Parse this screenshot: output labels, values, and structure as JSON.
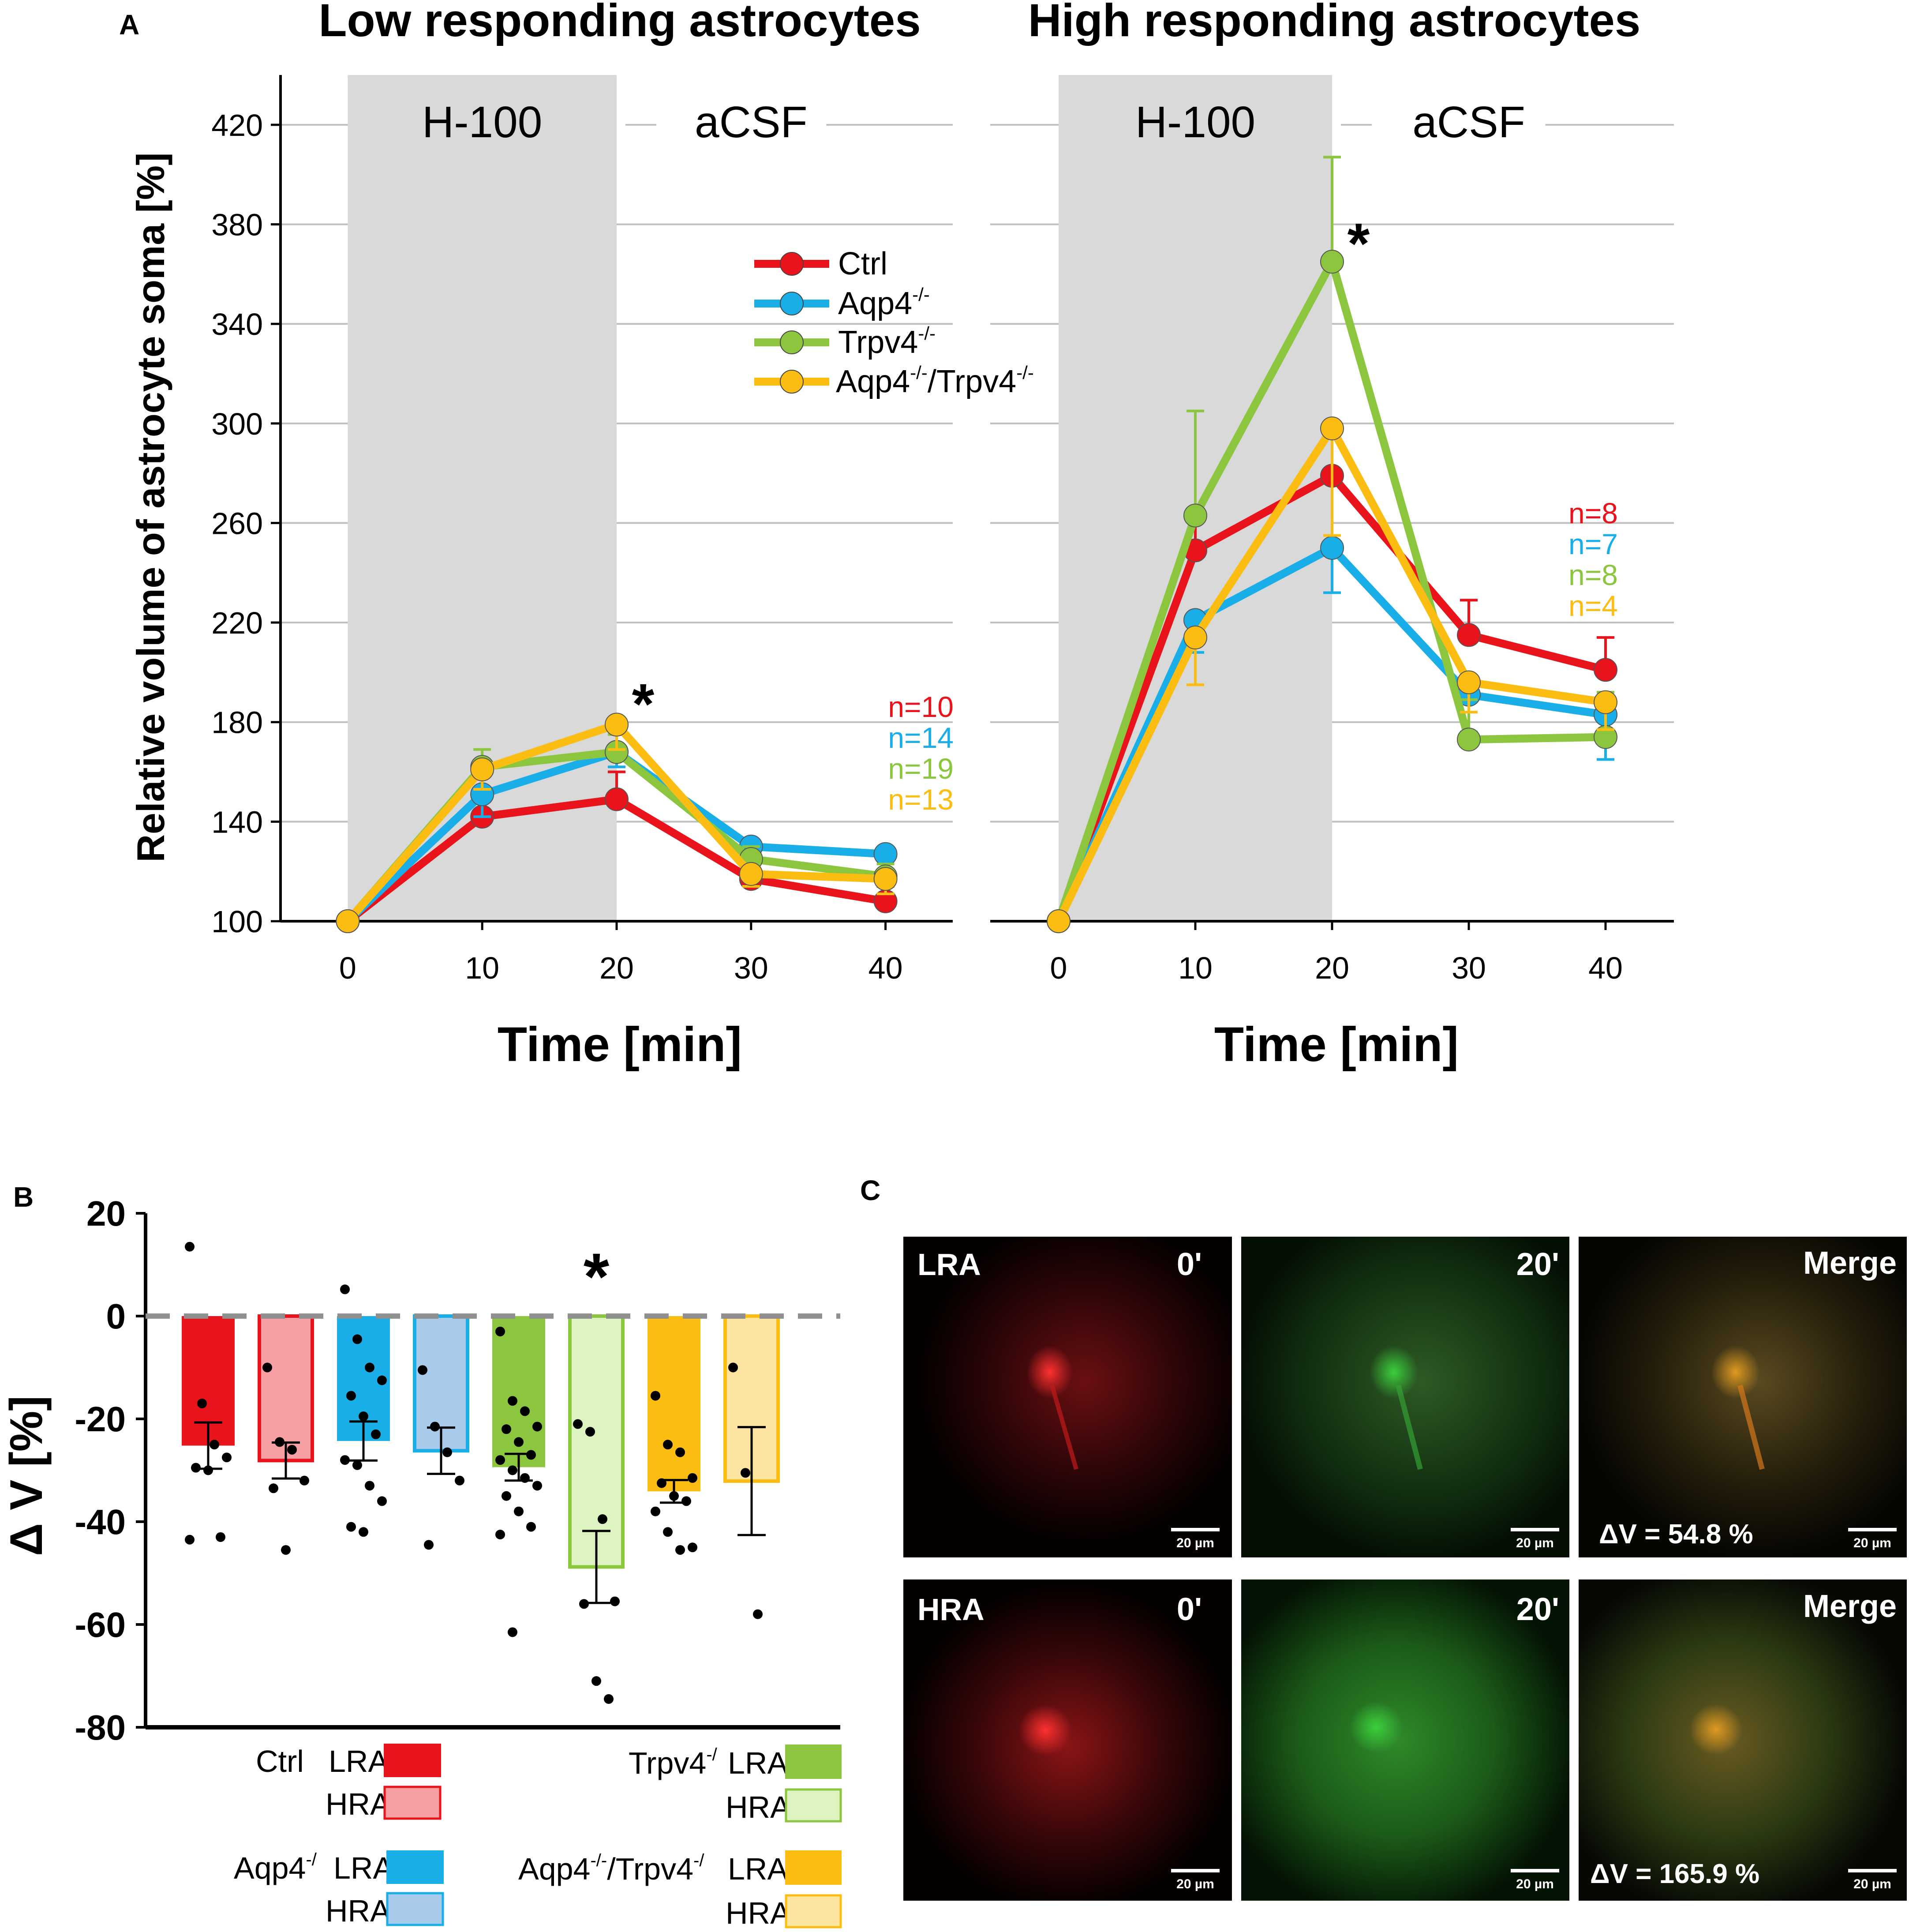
{
  "colors": {
    "ctrl": "#e8131b",
    "aqp4": "#19aee8",
    "trpv4": "#8cc63f",
    "aqp4_trpv4": "#fbbd12",
    "ctrl_hra_fill": "#f7a0a4",
    "aqp4_hra_fill": "#a8cbec",
    "trpv4_hra_fill": "#ddf4c1",
    "aqp4_trpv4_hra_fill": "#fde5a1",
    "shade": "#d9d9d9",
    "grid": "#bfbfbf",
    "zero_line": "#8f8f8f"
  },
  "panel_a": {
    "label": "A",
    "left_title": "Low responding astrocytes",
    "right_title": "High responding astrocytes",
    "shade_label": "H-100",
    "after_label": "aCSF",
    "ylabel": "Relative volume of astrocyte soma [%]",
    "xlabel": "Time [min]",
    "star": "*"
  },
  "panel_b": {
    "label": "B",
    "ylabel": "Δ V [%]",
    "star": "*",
    "legend": {
      "ctrl": "Ctrl",
      "aqp4": "Aqp4",
      "trpv4": "Trpv4",
      "aqp4_trpv4_a": "Aqp4",
      "aqp4_trpv4_b": "/Trpv4",
      "ko_sup": "-/-",
      "ko_sup_short": "-/",
      "lra": "LRA",
      "hra": "HRA"
    }
  },
  "panel_c": {
    "label": "C",
    "row_lra": "LRA",
    "row_hra": "HRA",
    "time0": "0'",
    "time20": "20'",
    "merge": "Merge",
    "scale": "20 µm",
    "dv_lra": "ΔV = 54.8 %",
    "dv_hra": "ΔV = 165.9 %"
  },
  "chart_data": [
    {
      "type": "line",
      "title": "Low responding astrocytes",
      "xlabel": "Time [min]",
      "ylabel": "Relative volume of astrocyte soma [%]",
      "x": [
        0,
        10,
        20,
        30,
        40
      ],
      "xlim": [
        -5,
        45
      ],
      "ylim": [
        100,
        440
      ],
      "yticks": [
        100,
        140,
        180,
        220,
        260,
        300,
        340,
        380,
        420
      ],
      "shaded_region": [
        0,
        20
      ],
      "legend": [
        "Ctrl",
        "Aqp4-/-",
        "Trpv4-/-",
        "Aqp4-/-/Trpv4-/-"
      ],
      "legend_position": "top-right",
      "significance": {
        "x": 20,
        "y": 190,
        "label": "*"
      },
      "series": [
        {
          "name": "Ctrl",
          "color_key": "ctrl",
          "n": "n=10",
          "values": [
            100,
            142,
            149,
            117,
            108
          ],
          "err": [
            0,
            8,
            11,
            6,
            6
          ]
        },
        {
          "name": "Aqp4-/-",
          "color_key": "aqp4",
          "n": "n=14",
          "values": [
            100,
            151,
            168,
            130,
            127
          ],
          "err": [
            0,
            9,
            6,
            9,
            9
          ]
        },
        {
          "name": "Trpv4-/-",
          "color_key": "trpv4",
          "n": "n=19",
          "values": [
            100,
            162,
            168,
            125,
            118
          ],
          "err": [
            0,
            7,
            7,
            5,
            5
          ]
        },
        {
          "name": "Aqp4-/-/Trpv4-/-",
          "color_key": "aqp4_trpv4",
          "n": "n=13",
          "values": [
            100,
            161,
            179,
            119,
            117
          ],
          "err": [
            0,
            8,
            10,
            5,
            6
          ]
        }
      ]
    },
    {
      "type": "line",
      "title": "High responding astrocytes",
      "xlabel": "Time [min]",
      "x": [
        0,
        10,
        20,
        30,
        40
      ],
      "xlim": [
        -5,
        45
      ],
      "ylim": [
        100,
        440
      ],
      "shaded_region": [
        0,
        20
      ],
      "significance": {
        "x": 20,
        "y": 375,
        "label": "*"
      },
      "series": [
        {
          "name": "Ctrl",
          "color_key": "ctrl",
          "n": "n=8",
          "values": [
            100,
            249,
            279,
            215,
            201
          ],
          "err": [
            0,
            14,
            20,
            14,
            13
          ]
        },
        {
          "name": "Aqp4-/-",
          "color_key": "aqp4",
          "n": "n=7",
          "values": [
            100,
            221,
            250,
            191,
            183
          ],
          "err": [
            0,
            13,
            18,
            15,
            18
          ]
        },
        {
          "name": "Trpv4-/-",
          "color_key": "trpv4",
          "n": "n=8",
          "values": [
            100,
            263,
            365,
            173,
            174
          ],
          "err": [
            0,
            42,
            42,
            16,
            18
          ]
        },
        {
          "name": "Aqp4-/-/Trpv4-/-",
          "color_key": "aqp4_trpv4",
          "n": "n=4",
          "values": [
            100,
            214,
            298,
            196,
            188
          ],
          "err": [
            0,
            19,
            43,
            12,
            11
          ]
        }
      ]
    },
    {
      "type": "bar",
      "ylabel": "Δ V [%]",
      "ylim": [
        -80,
        20
      ],
      "yticks": [
        20,
        0,
        -20,
        -40,
        -60,
        -80
      ],
      "categories": [
        "Ctrl LRA",
        "Ctrl HRA",
        "Aqp4-/- LRA",
        "Aqp4-/- HRA",
        "Trpv4-/- LRA",
        "Trpv4-/- HRA",
        "Aqp4-/-/Trpv4-/- LRA",
        "Aqp4-/-/Trpv4-/- HRA"
      ],
      "values": [
        -25.2,
        -28.1,
        -24.3,
        -26.2,
        -29.4,
        -48.8,
        -34.1,
        -32.1
      ],
      "sem": [
        4.5,
        3.5,
        3.8,
        4.5,
        2.6,
        7.0,
        2.2,
        10.5
      ],
      "fill_keys": [
        "ctrl",
        "ctrl_hra_fill",
        "aqp4",
        "aqp4_hra_fill",
        "trpv4",
        "trpv4_hra_fill",
        "aqp4_trpv4",
        "aqp4_trpv4_hra_fill"
      ],
      "stroke_keys": [
        "ctrl",
        "ctrl",
        "aqp4",
        "aqp4",
        "trpv4",
        "trpv4",
        "aqp4_trpv4",
        "aqp4_trpv4"
      ],
      "significance": {
        "category": 5,
        "label": "*"
      },
      "points": [
        [
          13.5,
          -17,
          -25,
          -27.5,
          -29.5,
          -30,
          -43,
          -43.5
        ],
        [
          -10,
          -24.5,
          -26,
          -32,
          -33.5,
          -45.5
        ],
        [
          5.2,
          -4.5,
          -10,
          -12.5,
          -15.5,
          -19.5,
          -23,
          -28,
          -29,
          -33,
          -36,
          -41,
          -42
        ],
        [
          -10.5,
          -21.5,
          -26.5,
          -32,
          -44.5
        ],
        [
          -3,
          -16.5,
          -18.5,
          -21.5,
          -22,
          -24.5,
          -27,
          -28,
          -30,
          -31.5,
          -33,
          -35,
          -38,
          -41,
          -42.5,
          -61.5
        ],
        [
          -21,
          -22.5,
          -39.5,
          -55.5,
          -56,
          -71,
          -74.5
        ],
        [
          -15.5,
          -25,
          -26.5,
          -31.5,
          -32.5,
          -35,
          -36,
          -38,
          -42,
          -45.5,
          -45
        ],
        [
          -10,
          -30.5,
          -58
        ]
      ]
    }
  ]
}
